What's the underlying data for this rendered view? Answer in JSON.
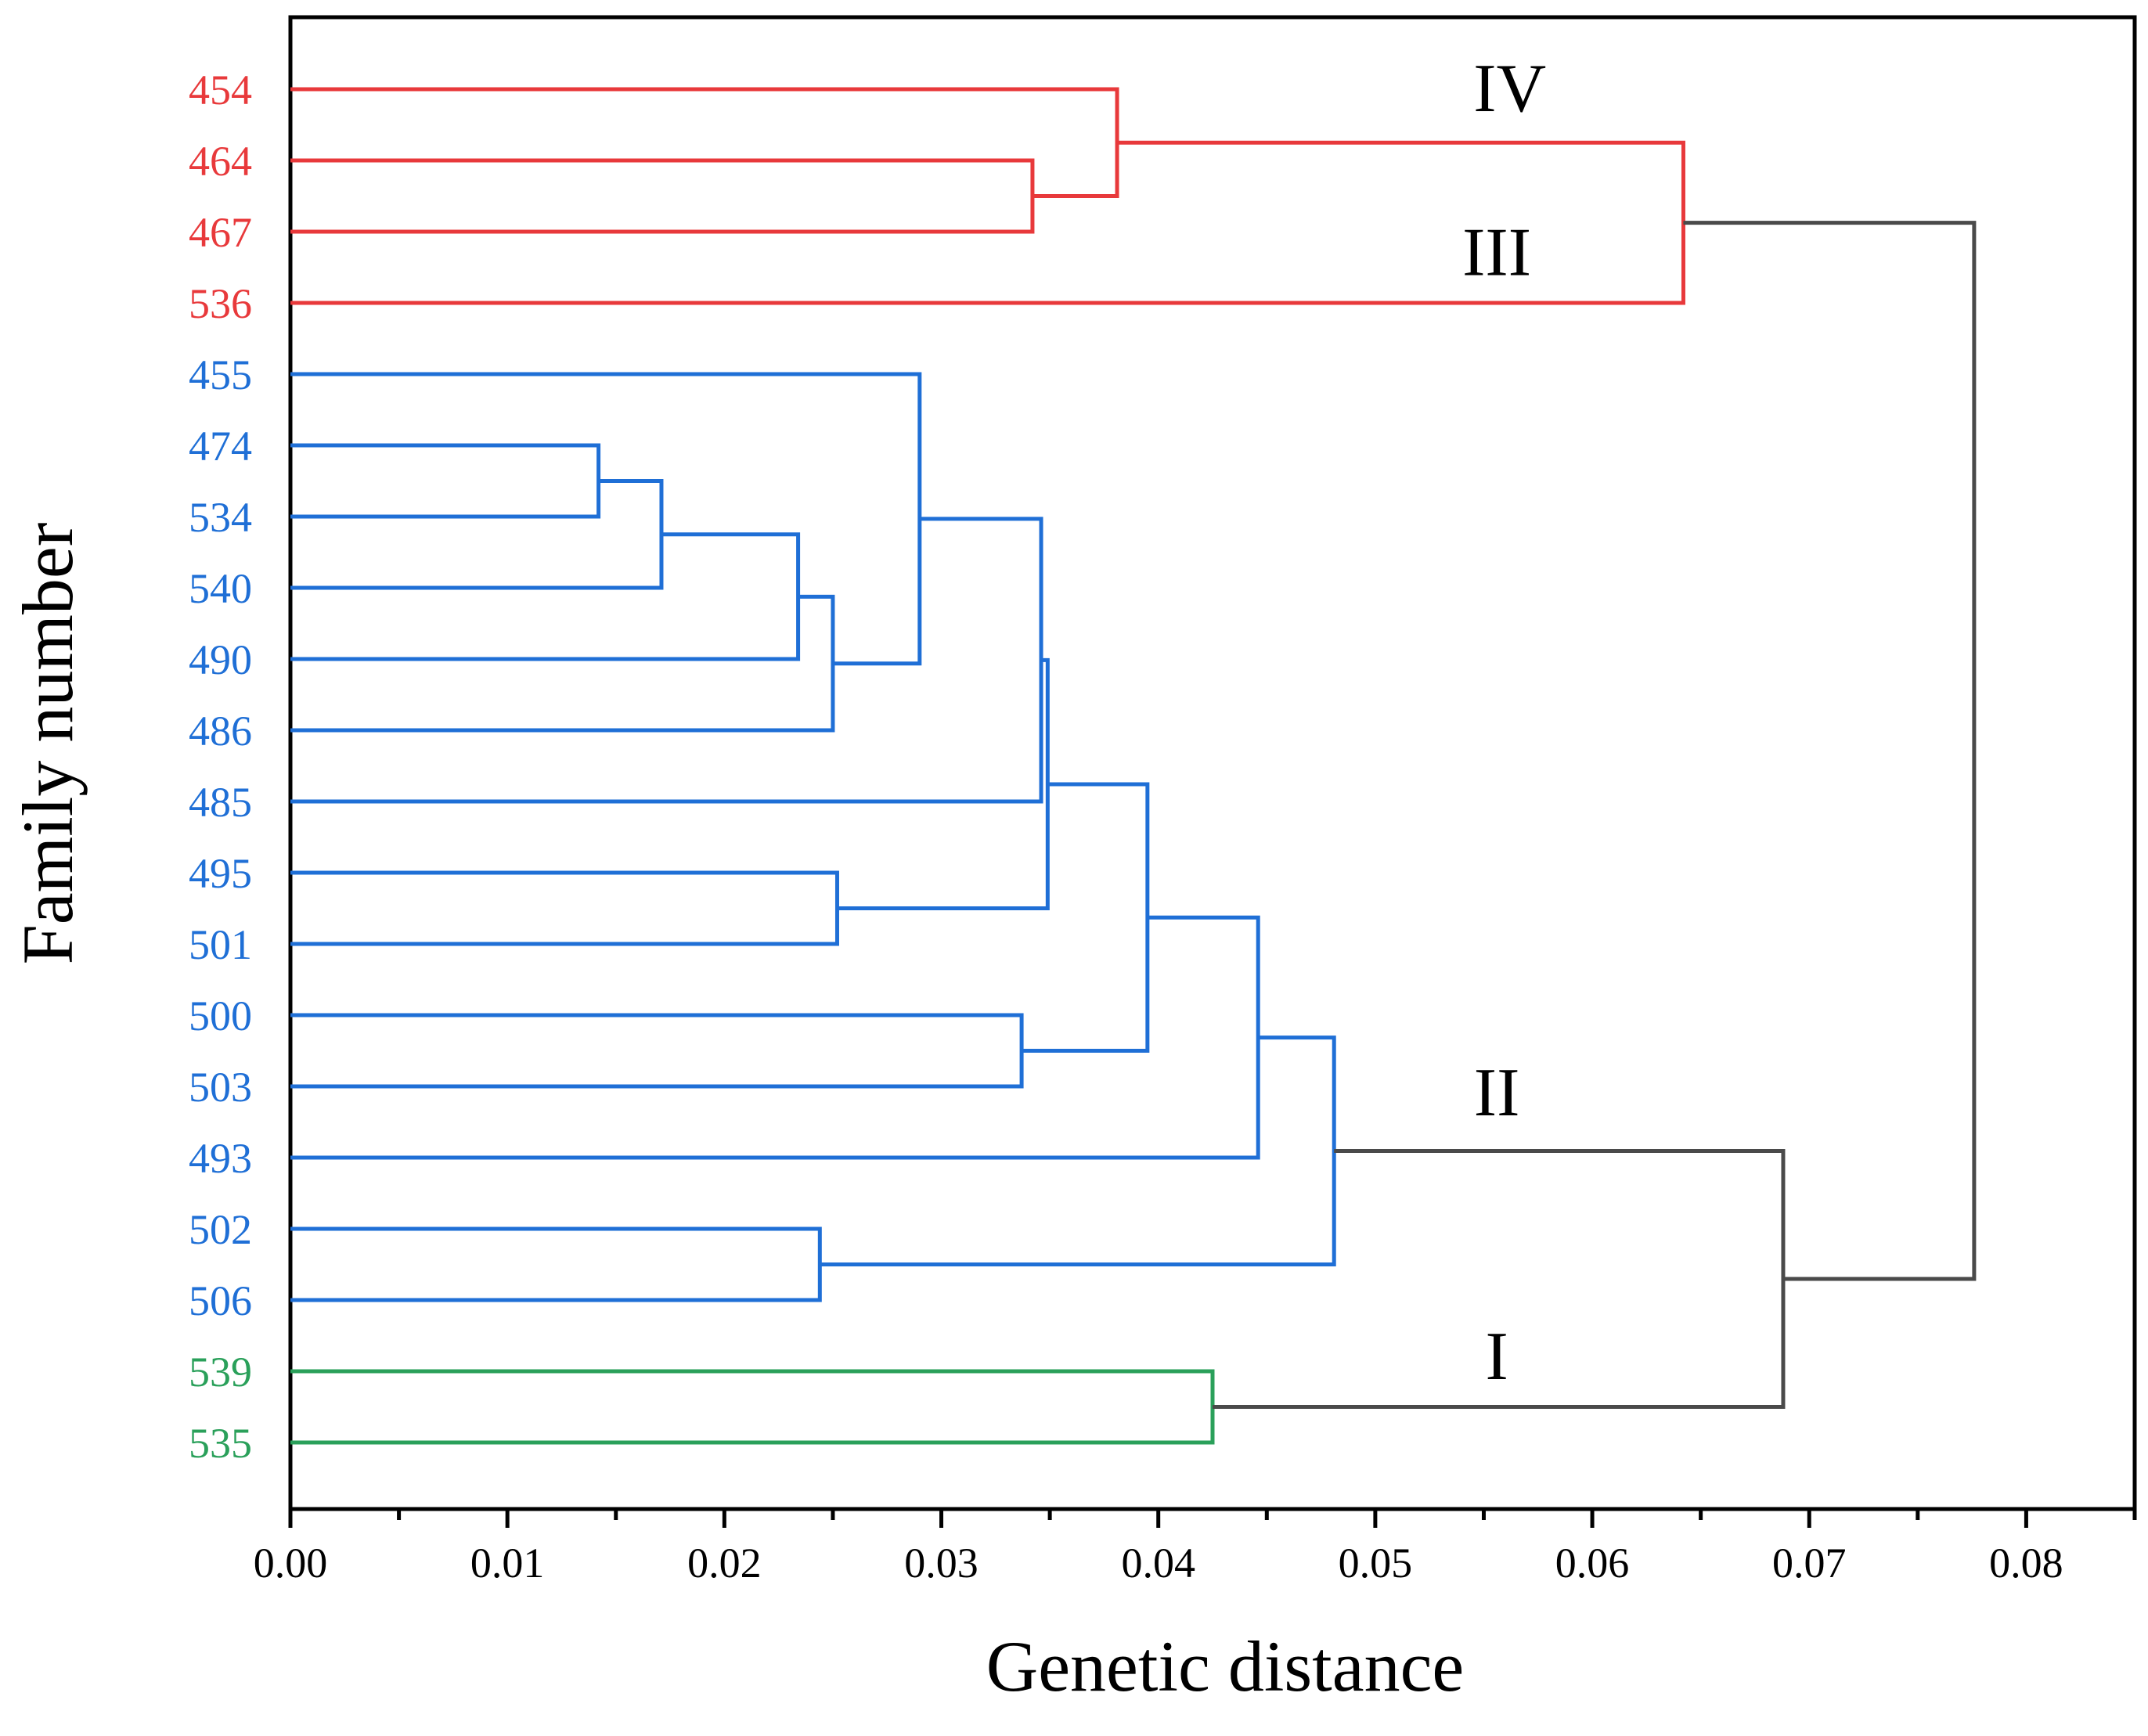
{
  "chart_data": {
    "type": "dendrogram",
    "orientation": "horizontal",
    "xlabel": "Genetic distance",
    "ylabel": "Family number",
    "xlim": [
      0,
      0.085
    ],
    "x_ticks": [
      0.0,
      0.01,
      0.02,
      0.03,
      0.04,
      0.05,
      0.06,
      0.07,
      0.08
    ],
    "x_tick_labels": [
      "0.00",
      "0.01",
      "0.02",
      "0.03",
      "0.04",
      "0.05",
      "0.06",
      "0.07",
      "0.08"
    ],
    "colors": {
      "red": "#e8393b",
      "blue": "#1f6fd6",
      "green": "#2aa05a",
      "gray": "#4a4a4a",
      "axis": "#000000"
    },
    "leaves": [
      {
        "label": "454",
        "color": "red"
      },
      {
        "label": "464",
        "color": "red"
      },
      {
        "label": "467",
        "color": "red"
      },
      {
        "label": "536",
        "color": "red"
      },
      {
        "label": "455",
        "color": "blue"
      },
      {
        "label": "474",
        "color": "blue"
      },
      {
        "label": "534",
        "color": "blue"
      },
      {
        "label": "540",
        "color": "blue"
      },
      {
        "label": "490",
        "color": "blue"
      },
      {
        "label": "486",
        "color": "blue"
      },
      {
        "label": "485",
        "color": "blue"
      },
      {
        "label": "495",
        "color": "blue"
      },
      {
        "label": "501",
        "color": "blue"
      },
      {
        "label": "500",
        "color": "blue"
      },
      {
        "label": "503",
        "color": "blue"
      },
      {
        "label": "493",
        "color": "blue"
      },
      {
        "label": "502",
        "color": "blue"
      },
      {
        "label": "506",
        "color": "blue"
      },
      {
        "label": "539",
        "color": "green"
      },
      {
        "label": "535",
        "color": "green"
      }
    ],
    "merges": [
      {
        "id": "m1",
        "left": "L464",
        "right": "L467",
        "height": 0.0342,
        "color": "red"
      },
      {
        "id": "m2",
        "left": "L454",
        "right": "m1",
        "height": 0.0381,
        "color": "red"
      },
      {
        "id": "m3",
        "left": "m2",
        "right": "L536",
        "height": 0.0642,
        "color": "red"
      },
      {
        "id": "m4",
        "left": "L474",
        "right": "L534",
        "height": 0.0142,
        "color": "blue"
      },
      {
        "id": "m5",
        "left": "m4",
        "right": "L540",
        "height": 0.0171,
        "color": "blue"
      },
      {
        "id": "m6",
        "left": "m5",
        "right": "L490",
        "height": 0.0234,
        "color": "blue"
      },
      {
        "id": "m7",
        "left": "m6",
        "right": "L486",
        "height": 0.025,
        "color": "blue"
      },
      {
        "id": "m8",
        "left": "L455",
        "right": "m7",
        "height": 0.029,
        "color": "blue"
      },
      {
        "id": "m9",
        "left": "m8",
        "right": "L485",
        "height": 0.0346,
        "color": "blue"
      },
      {
        "id": "m10",
        "left": "L495",
        "right": "L501",
        "height": 0.0252,
        "color": "blue"
      },
      {
        "id": "m11",
        "left": "m9",
        "right": "m10",
        "height": 0.0349,
        "color": "blue"
      },
      {
        "id": "m12",
        "left": "L500",
        "right": "L503",
        "height": 0.0337,
        "color": "blue"
      },
      {
        "id": "m13",
        "left": "m11",
        "right": "m12",
        "height": 0.0395,
        "color": "blue"
      },
      {
        "id": "m14",
        "left": "m13",
        "right": "L493",
        "height": 0.0446,
        "color": "blue"
      },
      {
        "id": "m15",
        "left": "L502",
        "right": "L506",
        "height": 0.0244,
        "color": "blue"
      },
      {
        "id": "m16",
        "left": "m14",
        "right": "m15",
        "height": 0.0481,
        "color": "blue"
      },
      {
        "id": "m17",
        "left": "L539",
        "right": "L535",
        "height": 0.0425,
        "color": "green"
      },
      {
        "id": "m18",
        "left": "m16",
        "right": "m17",
        "height": 0.0688,
        "color": "gray"
      },
      {
        "id": "m19",
        "left": "m3",
        "right": "m18",
        "height": 0.0776,
        "color": "gray"
      }
    ],
    "cluster_labels": [
      {
        "text": "IV",
        "x": 0.0562,
        "y_leaf": 0.0
      },
      {
        "text": "III",
        "x": 0.0556,
        "y_leaf": 2.3
      },
      {
        "text": "II",
        "x": 0.0556,
        "y_leaf": 14.1
      },
      {
        "text": "I",
        "x": 0.0556,
        "y_leaf": 17.8
      }
    ]
  }
}
